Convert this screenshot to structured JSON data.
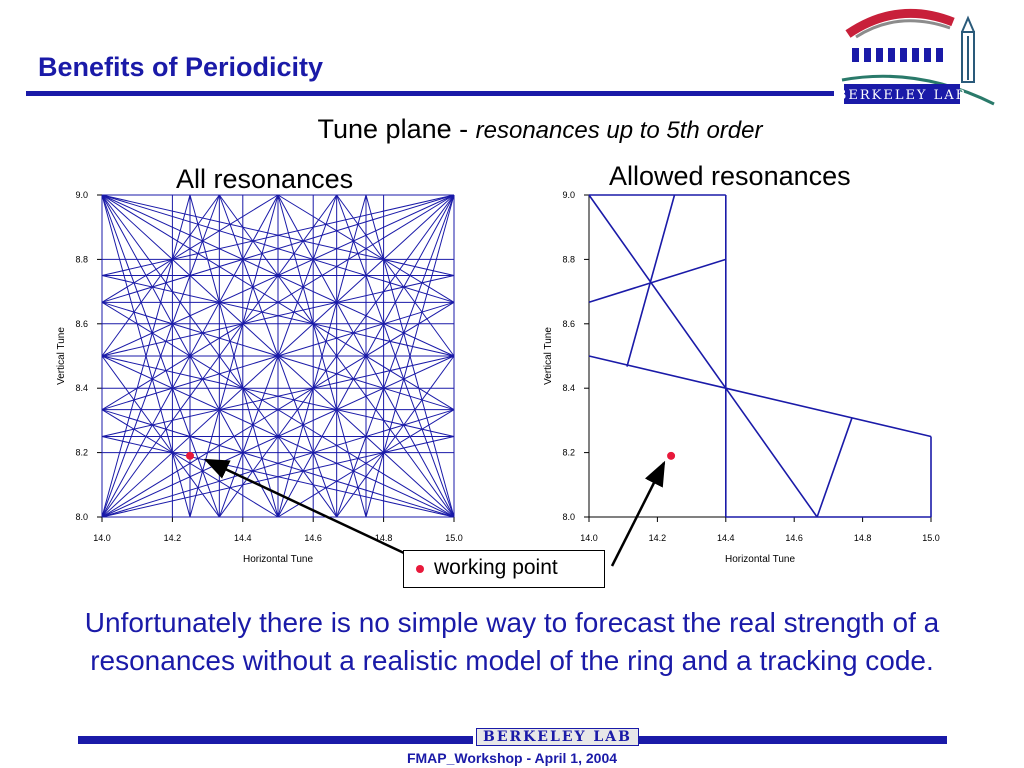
{
  "slide": {
    "title": "Benefits of Periodicity",
    "subtitle_main": "Tune plane - ",
    "subtitle_em": "resonances up to 5th order",
    "body_text": "Unfortunately there is no simple way to forecast the real strength of a resonances without a realistic model of the ring and a tracking code.",
    "footer": "FMAP_Workshop - April 1, 2004",
    "footer_logo_text": "BERKELEY LAB",
    "logo_text": "BERKELEY LAB"
  },
  "legend": {
    "label": "working point",
    "dot_color": "#e8193b"
  },
  "colors": {
    "accent": "#1a1aa8",
    "line": "#1a1aa8",
    "point": "#e8193b"
  },
  "chart_data": [
    {
      "type": "line",
      "title": "All resonances",
      "xlabel": "Horizontal Tune",
      "ylabel": "Vertical Tune",
      "xlim": [
        14.0,
        15.0
      ],
      "ylim": [
        8.0,
        9.0
      ],
      "x_ticks": [
        "14.0",
        "14.2",
        "14.4",
        "14.6",
        "14.8",
        "15.0"
      ],
      "y_ticks": [
        "8.0",
        "8.2",
        "8.4",
        "8.6",
        "8.8",
        "9.0"
      ],
      "resonance_max_order": 5,
      "working_point": [
        14.25,
        8.19
      ]
    },
    {
      "type": "line",
      "title": "Allowed resonances",
      "xlabel": "Horizontal Tune",
      "ylabel": "Vertical Tune",
      "xlim": [
        14.0,
        15.0
      ],
      "ylim": [
        8.0,
        9.0
      ],
      "x_ticks": [
        "14.0",
        "14.2",
        "14.4",
        "14.6",
        "14.8",
        "15.0"
      ],
      "y_ticks": [
        "8.0",
        "8.2",
        "8.4",
        "8.6",
        "8.8",
        "9.0"
      ],
      "segments": [
        [
          [
            14.0,
            9.0
          ],
          [
            14.4,
            8.4
          ]
        ],
        [
          [
            14.0,
            8.5
          ],
          [
            14.4,
            8.4
          ]
        ],
        [
          [
            14.4,
            8.4
          ],
          [
            15.0,
            8.25
          ]
        ],
        [
          [
            14.4,
            8.4
          ],
          [
            14.4,
            9.0
          ]
        ],
        [
          [
            14.0,
            8.667
          ],
          [
            14.4,
            8.8
          ]
        ],
        [
          [
            14.25,
            9.0
          ],
          [
            14.111,
            8.467
          ]
        ],
        [
          [
            14.4,
            8.4
          ],
          [
            14.667,
            8.0
          ]
        ],
        [
          [
            14.667,
            8.0
          ],
          [
            14.769,
            8.308
          ]
        ],
        [
          [
            14.4,
            8.0
          ],
          [
            14.4,
            8.4
          ]
        ],
        [
          [
            15.0,
            8.25
          ],
          [
            15.0,
            8.0
          ]
        ],
        [
          [
            14.4,
            8.0
          ],
          [
            15.0,
            8.0
          ]
        ],
        [
          [
            14.0,
            9.0
          ],
          [
            14.4,
            9.0
          ]
        ]
      ],
      "working_point": [
        14.24,
        8.19
      ]
    }
  ]
}
